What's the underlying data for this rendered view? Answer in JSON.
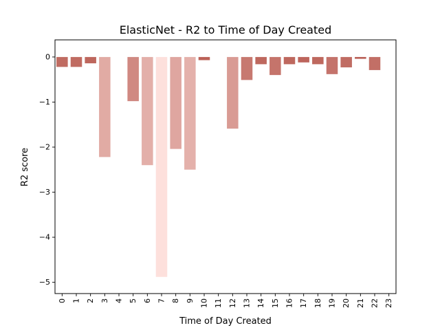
{
  "chart_data": {
    "type": "bar",
    "title": "ElasticNet - R2 to Time of Day Created",
    "xlabel": "Time of Day Created",
    "ylabel": "R2 score",
    "categories": [
      "0",
      "1",
      "2",
      "3",
      "4",
      "5",
      "6",
      "7",
      "8",
      "9",
      "10",
      "11",
      "12",
      "13",
      "14",
      "15",
      "16",
      "17",
      "18",
      "19",
      "20",
      "21",
      "22",
      "23"
    ],
    "values": [
      -0.22,
      -0.22,
      -0.14,
      -2.22,
      null,
      -0.98,
      -2.4,
      -4.88,
      -2.04,
      -2.5,
      -0.07,
      null,
      -1.59,
      -0.51,
      -0.16,
      -0.4,
      -0.16,
      -0.12,
      -0.16,
      -0.38,
      -0.23,
      -0.04,
      -0.29,
      null
    ],
    "ylim": [
      -5.25,
      0.38
    ],
    "y_ticks": [
      0,
      -1,
      -2,
      -3,
      -4,
      -5
    ],
    "y_tick_labels": [
      "0",
      "−1",
      "−2",
      "−3",
      "−4",
      "−5"
    ],
    "grid": false,
    "legend": "none",
    "colors": {
      "least_negative": "#b85c52",
      "most_negative": "#fde0dc",
      "axis": "#000000"
    }
  }
}
